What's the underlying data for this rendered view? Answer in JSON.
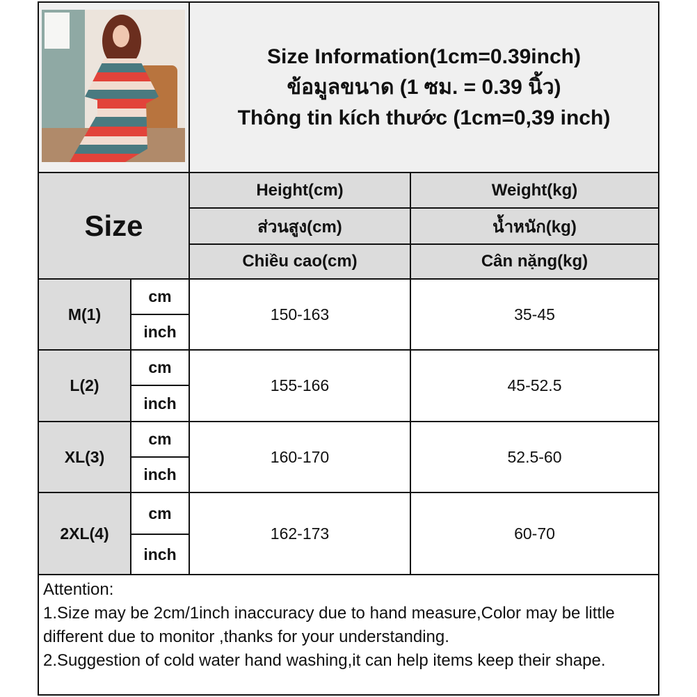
{
  "product_image": {
    "alt": "woman in striped nightdress",
    "colors": [
      "#e2433a",
      "#4a7a80",
      "#f1dcd0"
    ]
  },
  "title": {
    "line_en": "Size Information(1cm=0.39inch)",
    "line_th": "ข้อมูลขนาด (1 ซม. = 0.39 นิ้ว)",
    "line_vi": "Thông tin kích thước (1cm=0,39 inch)"
  },
  "table": {
    "size_header": "Size",
    "columns": [
      {
        "en": "Height(cm)",
        "th": "ส่วนสูง(cm)",
        "vi": "Chiều cao(cm)"
      },
      {
        "en": "Weight(kg)",
        "th": "น้ำหนัก(kg)",
        "vi": "Cân nặng(kg)"
      }
    ],
    "unit_cm": "cm",
    "unit_inch": "inch",
    "rows": [
      {
        "size": "M(1)",
        "height": "150-163",
        "weight": "35-45"
      },
      {
        "size": "L(2)",
        "height": "155-166",
        "weight": "45-52.5"
      },
      {
        "size": "XL(3)",
        "height": "160-170",
        "weight": "52.5-60"
      },
      {
        "size": "2XL(4)",
        "height": "162-173",
        "weight": "60-70"
      }
    ]
  },
  "attention": {
    "heading": "Attention:",
    "note1": "1.Size may be 2cm/1inch inaccuracy due to hand measure,Color may be little different due to monitor ,thanks for your understanding.",
    "note2": "2.Suggestion of cold water hand washing,it can help items keep their shape."
  }
}
